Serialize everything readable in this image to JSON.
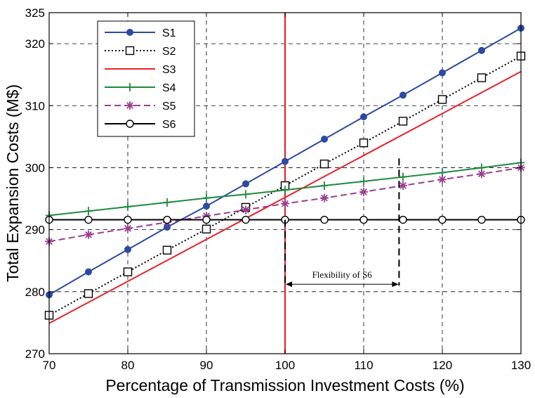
{
  "chart_data": {
    "type": "line",
    "xlabel": "Percentage of Transmission Investment Costs (%)",
    "ylabel": "Total Expansion Costs (M$)",
    "xlim": [
      70,
      130
    ],
    "ylim": [
      270,
      325
    ],
    "xticks": [
      70,
      80,
      90,
      100,
      110,
      120,
      130
    ],
    "yticks": [
      270,
      280,
      290,
      300,
      310,
      320,
      325
    ],
    "grid": true,
    "legend_position": "top-left",
    "x": [
      70,
      75,
      80,
      85,
      90,
      95,
      100,
      105,
      110,
      115,
      120,
      125,
      130
    ],
    "series": [
      {
        "name": "S1",
        "color": "#2b4aa0",
        "marker": "filled-circle",
        "linestyle": "solid",
        "values": [
          279.5,
          283.2,
          286.8,
          290.4,
          293.8,
          297.4,
          301.0,
          304.6,
          308.2,
          311.7,
          315.3,
          318.9,
          322.5
        ]
      },
      {
        "name": "S2",
        "color": "#000000",
        "marker": "open-square",
        "linestyle": "dotted",
        "values": [
          276.2,
          279.7,
          283.2,
          286.7,
          290.1,
          293.6,
          297.1,
          300.6,
          304.0,
          307.5,
          311.0,
          314.5,
          318.0
        ]
      },
      {
        "name": "S3",
        "color": "#e8232b",
        "marker": "none",
        "linestyle": "solid",
        "x": [
          70,
          130
        ],
        "values": [
          274.9,
          315.5
        ]
      },
      {
        "name": "S4",
        "color": "#1d8a3c",
        "marker": "plus",
        "linestyle": "solid",
        "values": [
          292.3,
          293.0,
          293.7,
          294.4,
          295.1,
          295.7,
          296.4,
          297.1,
          297.8,
          298.5,
          299.2,
          300.0,
          300.8
        ]
      },
      {
        "name": "S5",
        "color": "#9b3d8f",
        "marker": "star",
        "linestyle": "dashed",
        "values": [
          288.1,
          289.2,
          290.2,
          291.2,
          292.2,
          293.2,
          294.2,
          295.1,
          296.1,
          297.1,
          298.1,
          299.0,
          300.0
        ]
      },
      {
        "name": "S6",
        "color": "#000000",
        "marker": "open-circle",
        "linestyle": "solid",
        "values": [
          291.6,
          291.6,
          291.6,
          291.6,
          291.6,
          291.6,
          291.6,
          291.6,
          291.6,
          291.6,
          291.6,
          291.6,
          291.6
        ]
      }
    ],
    "reference_line": {
      "x": 100,
      "color": "#e8232b"
    },
    "annotations": [
      {
        "text": "Flexibility of S6",
        "x_start": 100,
        "x_end": 114.5,
        "y_arrow": 281.2,
        "y_top": 301.5
      }
    ]
  }
}
